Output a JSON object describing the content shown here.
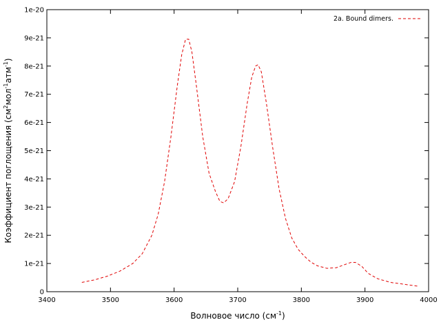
{
  "chart_data": {
    "type": "line",
    "title": "",
    "xlabel": {
      "text": "Волновое число (см",
      "sup": "-1",
      "tail": ")"
    },
    "ylabel": {
      "parts": [
        {
          "t": "Коэффициент поглощения (см",
          "sup": false
        },
        {
          "t": "2",
          "sup": true
        },
        {
          "t": "мол",
          "sup": false
        },
        {
          "t": "-1",
          "sup": true
        },
        {
          "t": "атм",
          "sup": false
        },
        {
          "t": "-1",
          "sup": true
        },
        {
          "t": ")",
          "sup": false
        }
      ]
    },
    "xlim": [
      3400,
      4000
    ],
    "ylim": [
      0,
      1e-20
    ],
    "xticks": [
      3400,
      3500,
      3600,
      3700,
      3800,
      3900,
      4000
    ],
    "xtick_labels": [
      "3400",
      "3500",
      "3600",
      "3700",
      "3800",
      "3900",
      "4000"
    ],
    "yticks": [
      0,
      1e-21,
      2e-21,
      3e-21,
      4e-21,
      5e-21,
      6e-21,
      7e-21,
      8e-21,
      9e-21,
      1e-20
    ],
    "ytick_labels": [
      "0",
      "1e-21",
      "2e-21",
      "3e-21",
      "4e-21",
      "5e-21",
      "6e-21",
      "7e-21",
      "8e-21",
      "9e-21",
      "1e-20"
    ],
    "grid": false,
    "legend_position": "top-right",
    "series": [
      {
        "name": "2a. Bound dimers.",
        "color": "#e00000",
        "style": "dashed",
        "x": [
          3455,
          3475,
          3495,
          3515,
          3535,
          3550,
          3565,
          3575,
          3585,
          3595,
          3605,
          3612,
          3618,
          3623,
          3628,
          3635,
          3645,
          3655,
          3665,
          3672,
          3678,
          3685,
          3695,
          3705,
          3715,
          3722,
          3728,
          3732,
          3737,
          3745,
          3755,
          3765,
          3775,
          3785,
          3795,
          3805,
          3815,
          3825,
          3840,
          3855,
          3867,
          3878,
          3885,
          3895,
          3905,
          3920,
          3940,
          3960,
          3972,
          3985
        ],
        "y": [
          3.3e-22,
          4.2e-22,
          5.5e-22,
          7.3e-22,
          1e-21,
          1.35e-21,
          2e-21,
          2.75e-21,
          3.9e-21,
          5.5e-21,
          7.3e-21,
          8.4e-21,
          8.95e-21,
          8.95e-21,
          8.5e-21,
          7.3e-21,
          5.5e-21,
          4.2e-21,
          3.55e-21,
          3.2e-21,
          3.15e-21,
          3.3e-21,
          3.9e-21,
          5.15e-21,
          6.7e-21,
          7.6e-21,
          8e-21,
          8.05e-21,
          7.8e-21,
          6.7e-21,
          5.1e-21,
          3.65e-21,
          2.6e-21,
          1.9e-21,
          1.5e-21,
          1.25e-21,
          1.05e-21,
          9.2e-22,
          8.3e-22,
          8.5e-22,
          9.5e-22,
          1.04e-21,
          1.04e-21,
          9e-22,
          6.5e-22,
          4.6e-22,
          3.3e-22,
          2.7e-22,
          2.3e-22,
          1.9e-22
        ]
      }
    ]
  }
}
